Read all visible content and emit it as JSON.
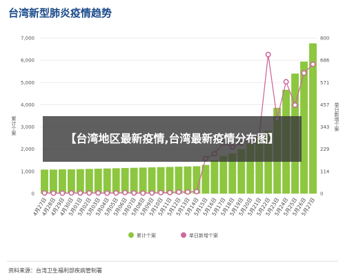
{
  "chart_data": {
    "type": "bar+line",
    "title": "台湾新型肺炎疫情趋势",
    "categories": [
      "4月27日",
      "4月28日",
      "4月29日",
      "4月30日",
      "5月01日",
      "5月02日",
      "5月03日",
      "5月04日",
      "5月05日",
      "5月06日",
      "5月07日",
      "5月08日",
      "5月09日",
      "5月10日",
      "5月11日",
      "5月12日",
      "5月13日",
      "5月14日",
      "5月15日",
      "5月16日",
      "5月17日",
      "5月18日",
      "5月19日",
      "5月20日",
      "5月21日",
      "5月22日",
      "5月23日",
      "5月24日",
      "5月25日",
      "5月26日",
      "5月27日"
    ],
    "series": [
      {
        "name": "累计个案",
        "type": "bar",
        "axis": "left",
        "color": "#8dc63f",
        "values": [
          1080,
          1080,
          1090,
          1090,
          1100,
          1110,
          1120,
          1130,
          1140,
          1150,
          1160,
          1170,
          1180,
          1190,
          1200,
          1210,
          1220,
          1230,
          1290,
          1500,
          1690,
          1810,
          1990,
          2260,
          2540,
          2820,
          3860,
          4670,
          5400,
          5940,
          6760
        ]
      },
      {
        "name": "单日新增个案",
        "type": "line",
        "axis": "right",
        "color": "#cc6a9b",
        "values": [
          3,
          2,
          2,
          3,
          3,
          3,
          3,
          2,
          3,
          5,
          3,
          2,
          3,
          5,
          5,
          8,
          8,
          10,
          180,
          205,
          260,
          240,
          260,
          275,
          300,
          715,
          385,
          575,
          455,
          620,
          665
        ]
      }
    ],
    "y_left": {
      "label": "累计个案",
      "ylim": [
        0,
        7000
      ],
      "ticks": [
        "0",
        "1,000",
        "2,000",
        "3,000",
        "4,000",
        "5,000",
        "6,000",
        "7,000"
      ]
    },
    "y_right": {
      "label": "单日新增个案",
      "ylim": [
        0,
        800
      ],
      "ticks": [
        "0",
        "114",
        "229",
        "343",
        "457",
        "571",
        "686",
        "800"
      ]
    },
    "grid": true,
    "legend_position": "bottom-center"
  },
  "source": "资料来源：台湾卫生福利部疾病管制署",
  "overlay_caption": "【台湾地区最新疫情,台湾最新疫情分布图】"
}
